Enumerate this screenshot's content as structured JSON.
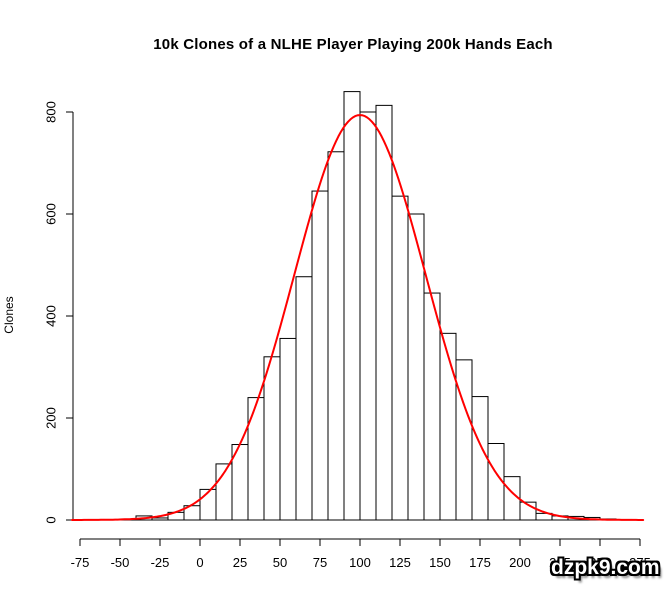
{
  "chart_data": {
    "type": "bar",
    "subtype": "histogram-with-normal-curve",
    "title": "10k Clones of a NLHE Player Playing 200k Hands Each",
    "xlabel": "",
    "ylabel": "Clones",
    "bin_start": -70,
    "bin_width": 10,
    "counts": [
      1,
      1,
      2,
      8,
      4,
      15,
      28,
      60,
      110,
      148,
      240,
      320,
      356,
      477,
      645,
      722,
      840,
      800,
      813,
      635,
      600,
      445,
      366,
      314,
      242,
      150,
      85,
      35,
      13,
      8,
      7,
      5,
      2,
      1
    ],
    "x_ticks": [
      -75,
      -50,
      -25,
      0,
      25,
      50,
      75,
      100,
      125,
      150,
      175,
      200,
      225,
      250,
      275
    ],
    "y_ticks": [
      0,
      200,
      400,
      600,
      800
    ],
    "xlim": [
      -87,
      278
    ],
    "ylim": [
      0,
      840
    ],
    "grid": false,
    "legend": null,
    "curve": {
      "type": "normal",
      "mean": 100,
      "sd": 41,
      "peak": 794
    },
    "colors": {
      "bar_fill": "#ffffff",
      "bar_stroke": "#000000",
      "curve": "#ff0000",
      "axis": "#000000",
      "text": "#000000"
    }
  },
  "watermark": {
    "text": "dzpk9.com"
  }
}
